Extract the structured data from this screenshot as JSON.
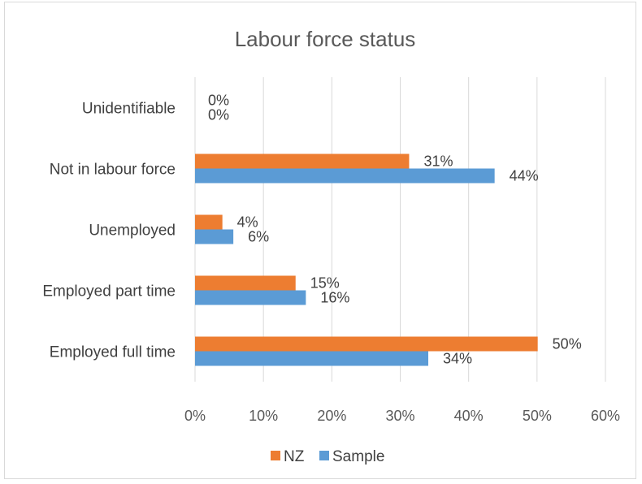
{
  "chart_data": {
    "type": "bar",
    "orientation": "horizontal",
    "title": "Labour force status",
    "categories": [
      "Employed full time",
      "Employed part time",
      "Unemployed",
      "Not in labour force",
      "Unidentifiable"
    ],
    "series": [
      {
        "name": "NZ",
        "color": "#ED7D31",
        "values": [
          50.1,
          14.7,
          4.0,
          31.3,
          0
        ],
        "labels": [
          "50%",
          "15%",
          "4%",
          "31%",
          "0%"
        ]
      },
      {
        "name": "Sample",
        "color": "#5B9BD5",
        "values": [
          34.1,
          16.2,
          5.6,
          43.8,
          0
        ],
        "labels": [
          "34%",
          "16%",
          "6%",
          "44%",
          "0%"
        ]
      }
    ],
    "xlim": [
      0,
      60
    ],
    "xticks": [
      "0%",
      "10%",
      "20%",
      "30%",
      "40%",
      "50%",
      "60%"
    ],
    "grid": true,
    "legend": "bottom",
    "gridline_color": "#d9d9d9"
  }
}
